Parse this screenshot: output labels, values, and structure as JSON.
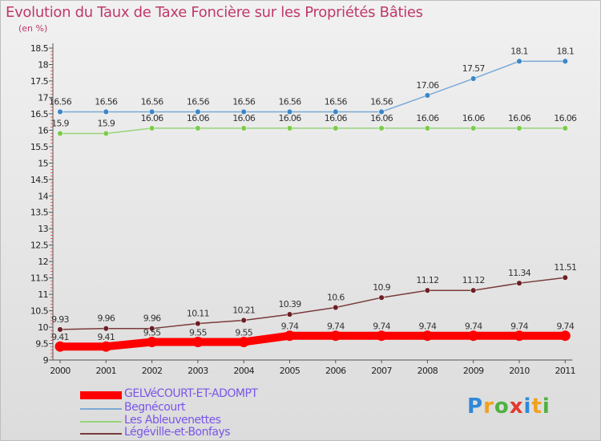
{
  "title": "Evolution du Taux de Taxe Foncière sur les Propriétés Bâties",
  "unit_label": "(en %)",
  "logo": {
    "text": "Proxiti",
    "letters": [
      {
        "ch": "P",
        "color": "#2f89d8"
      },
      {
        "ch": "r",
        "color": "#f0a11e"
      },
      {
        "ch": "o",
        "color": "#4fb23f"
      },
      {
        "ch": "x",
        "color": "#e23a2e"
      },
      {
        "ch": "i",
        "color": "#2f89d8"
      },
      {
        "ch": "t",
        "color": "#f0a11e"
      },
      {
        "ch": "i",
        "color": "#4fb23f"
      }
    ]
  },
  "chart_data": {
    "type": "line",
    "x": [
      "2000",
      "2001",
      "2002",
      "2003",
      "2004",
      "2005",
      "2006",
      "2007",
      "2008",
      "2009",
      "2010",
      "2011"
    ],
    "ylim": [
      9,
      18.5
    ],
    "yticks": [
      "9",
      "9.5",
      "10",
      "10.5",
      "11",
      "11.5",
      "12",
      "12.5",
      "13",
      "13.5",
      "14",
      "14.5",
      "15",
      "15.5",
      "16",
      "16.5",
      "17",
      "17.5",
      "18",
      "18.5"
    ],
    "grid": false,
    "legend_position": "bottom-left",
    "series": [
      {
        "name": "GELVéCOURT-ET-ADOMPT",
        "color": "#ff0000",
        "marker": "#ff0000",
        "thick": true,
        "values": [
          9.41,
          9.41,
          9.55,
          9.55,
          9.55,
          9.74,
          9.74,
          9.74,
          9.74,
          9.74,
          9.74,
          9.74
        ],
        "labels": [
          "9.41",
          "9.41",
          "9.55",
          "9.55",
          "9.55",
          "9.74",
          "9.74",
          "9.74",
          "9.74",
          "9.74",
          "9.74",
          "9.74"
        ]
      },
      {
        "name": "Begnécourt",
        "color": "#7aaad6",
        "marker": "#3b86c8",
        "thick": false,
        "values": [
          16.56,
          16.56,
          16.56,
          16.56,
          16.56,
          16.56,
          16.56,
          16.56,
          17.06,
          17.57,
          18.1,
          18.1
        ],
        "labels": [
          "16.56",
          "16.56",
          "16.56",
          "16.56",
          "16.56",
          "16.56",
          "16.56",
          "16.56",
          "17.06",
          "17.57",
          "18.1",
          "18.1"
        ]
      },
      {
        "name": "Les Ableuvenettes",
        "color": "#98d47a",
        "marker": "#7ccc4a",
        "thick": false,
        "values": [
          15.9,
          15.9,
          16.06,
          16.06,
          16.06,
          16.06,
          16.06,
          16.06,
          16.06,
          16.06,
          16.06,
          16.06
        ],
        "labels": [
          "15.9",
          "15.9",
          "16.06",
          "16.06",
          "16.06",
          "16.06",
          "16.06",
          "16.06",
          "16.06",
          "16.06",
          "16.06",
          "16.06"
        ]
      },
      {
        "name": "Légéville-et-Bonfays",
        "color": "#7a3a3a",
        "marker": "#6b1f24",
        "thick": false,
        "values": [
          9.93,
          9.96,
          9.96,
          10.11,
          10.21,
          10.39,
          10.6,
          10.9,
          11.12,
          11.12,
          11.34,
          11.51
        ],
        "labels": [
          "9.93",
          "9.96",
          "9.96",
          "10.11",
          "10.21",
          "10.39",
          "10.6",
          "10.9",
          "11.12",
          "11.12",
          "11.34",
          "11.51"
        ]
      }
    ]
  }
}
